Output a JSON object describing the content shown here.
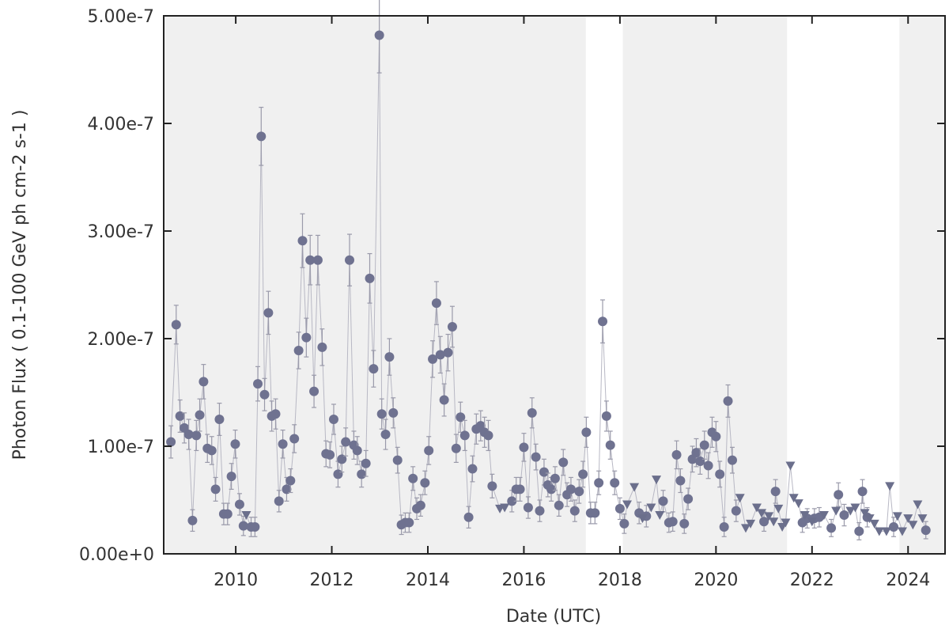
{
  "chart_data": {
    "type": "scatter",
    "xlabel": "Date (UTC)",
    "ylabel": "Photon Flux ( 0.1-100 GeV ph cm-2 s-1 )",
    "xlim": [
      2008.5,
      2024.77
    ],
    "ylim": [
      0,
      5e-07
    ],
    "xticks": [
      2010,
      2012,
      2014,
      2016,
      2018,
      2020,
      2022,
      2024
    ],
    "yticks": [
      {
        "value": 0,
        "label": "0.00e+0"
      },
      {
        "value": 1e-07,
        "label": "1.00e-7"
      },
      {
        "value": 2e-07,
        "label": "2.00e-7"
      },
      {
        "value": 3e-07,
        "label": "3.00e-7"
      },
      {
        "value": 4e-07,
        "label": "4.00e-7"
      },
      {
        "value": 5e-07,
        "label": "5.00e-7"
      }
    ],
    "shaded_regions": [
      [
        2008.5,
        2017.29
      ],
      [
        2018.06,
        2021.48
      ],
      [
        2023.82,
        2024.77
      ]
    ],
    "shade_color": "#f0f0f0",
    "line_color": "#b8b8c4",
    "series": [
      {
        "marker": "circle",
        "color": "#6f7290",
        "error_color": "#9a9aaa",
        "x": [
          2008.65,
          2008.76,
          2008.84,
          2008.93,
          2009.02,
          2009.1,
          2009.18,
          2009.25,
          2009.33,
          2009.41,
          2009.5,
          2009.58,
          2009.66,
          2009.75,
          2009.83,
          2009.91,
          2009.99,
          2010.08,
          2010.16,
          2010.32,
          2010.4,
          2010.46,
          2010.53,
          2010.6,
          2010.68,
          2010.75,
          2010.83,
          2010.9,
          2010.98,
          2011.06,
          2011.14,
          2011.22,
          2011.31,
          2011.39,
          2011.47,
          2011.55,
          2011.63,
          2011.71,
          2011.8,
          2011.88,
          2011.96,
          2012.04,
          2012.13,
          2012.21,
          2012.29,
          2012.37,
          2012.46,
          2012.53,
          2012.62,
          2012.71,
          2012.79,
          2012.87,
          2012.99,
          2013.04,
          2013.12,
          2013.2,
          2013.28,
          2013.37,
          2013.45,
          2013.53,
          2013.61,
          2013.69,
          2013.77,
          2013.85,
          2013.94,
          2014.02,
          2014.1,
          2014.18,
          2014.26,
          2014.34,
          2014.42,
          2014.51,
          2014.59,
          2014.68,
          2014.77,
          2014.85,
          2014.93,
          2015.01,
          2015.1,
          2015.18,
          2015.26,
          2015.34,
          2015.75,
          2015.84,
          2015.92,
          2016.0,
          2016.09,
          2016.17,
          2016.25,
          2016.33,
          2016.42,
          2016.5,
          2016.57,
          2016.65,
          2016.73,
          2016.82,
          2016.9,
          2016.98,
          2017.06,
          2017.15,
          2017.23,
          2017.3,
          2017.39,
          2017.48,
          2017.56,
          2017.64,
          2017.72,
          2017.8,
          2017.89,
          2018.0,
          2018.09,
          2018.4,
          2018.55,
          2018.9,
          2019.02,
          2019.1,
          2019.18,
          2019.26,
          2019.34,
          2019.42,
          2019.51,
          2019.59,
          2019.67,
          2019.76,
          2019.84,
          2019.92,
          2020.0,
          2020.08,
          2020.17,
          2020.25,
          2020.34,
          2020.42,
          2021.0,
          2021.24,
          2021.8,
          2021.9,
          2022.05,
          2022.15,
          2022.4,
          2022.55,
          2022.67,
          2022.98,
          2023.05,
          2023.15,
          2023.7,
          2024.37
        ],
        "values": [
          1.04e-07,
          2.13e-07,
          1.28e-07,
          1.17e-07,
          1.11e-07,
          3.1e-08,
          1.1e-07,
          1.29e-07,
          1.6e-07,
          9.8e-08,
          9.6e-08,
          6e-08,
          1.25e-07,
          3.7e-08,
          3.7e-08,
          7.2e-08,
          1.02e-07,
          4.6e-08,
          2.6e-08,
          2.5e-08,
          2.5e-08,
          1.58e-07,
          3.88e-07,
          1.48e-07,
          2.24e-07,
          1.28e-07,
          1.3e-07,
          4.9e-08,
          1.02e-07,
          6e-08,
          6.8e-08,
          1.07e-07,
          1.89e-07,
          2.91e-07,
          2.01e-07,
          2.73e-07,
          1.51e-07,
          2.73e-07,
          1.92e-07,
          9.3e-08,
          9.2e-08,
          1.25e-07,
          7.4e-08,
          8.8e-08,
          1.04e-07,
          2.73e-07,
          1.01e-07,
          9.6e-08,
          7.4e-08,
          8.4e-08,
          2.56e-07,
          1.72e-07,
          4.82e-07,
          1.3e-07,
          1.11e-07,
          1.83e-07,
          1.31e-07,
          8.7e-08,
          2.7e-08,
          2.9e-08,
          2.9e-08,
          7e-08,
          4.2e-08,
          4.5e-08,
          6.6e-08,
          9.6e-08,
          1.81e-07,
          2.33e-07,
          1.85e-07,
          1.43e-07,
          1.87e-07,
          2.11e-07,
          9.8e-08,
          1.27e-07,
          1.1e-07,
          3.4e-08,
          7.9e-08,
          1.16e-07,
          1.19e-07,
          1.13e-07,
          1.1e-07,
          6.3e-08,
          4.9e-08,
          6e-08,
          6e-08,
          9.9e-08,
          4.3e-08,
          1.31e-07,
          9e-08,
          4e-08,
          7.6e-08,
          6.4e-08,
          6e-08,
          7e-08,
          4.5e-08,
          8.5e-08,
          5.5e-08,
          6e-08,
          4e-08,
          5.8e-08,
          7.4e-08,
          1.13e-07,
          3.8e-08,
          3.8e-08,
          6.6e-08,
          2.16e-07,
          1.28e-07,
          1.01e-07,
          6.6e-08,
          4.2e-08,
          2.8e-08,
          3.8e-08,
          3.5e-08,
          4.9e-08,
          2.9e-08,
          3e-08,
          9.2e-08,
          6.8e-08,
          2.8e-08,
          5.1e-08,
          8.8e-08,
          9.4e-08,
          8.6e-08,
          1.01e-07,
          8.2e-08,
          1.13e-07,
          1.09e-07,
          7.4e-08,
          2.5e-08,
          1.42e-07,
          8.7e-08,
          4e-08,
          3e-08,
          5.8e-08,
          2.9e-08,
          3.3e-08,
          3.3e-08,
          3.4e-08,
          2.4e-08,
          5.5e-08,
          3.6e-08,
          2.1e-08,
          5.8e-08,
          3.4e-08,
          2.5e-08,
          2.2e-08
        ],
        "errors": [
          1.5e-08,
          1.8e-08,
          1.5e-08,
          1.4e-08,
          1.4e-08,
          1e-08,
          1.4e-08,
          1.5e-08,
          1.6e-08,
          1.3e-08,
          1.3e-08,
          1.1e-08,
          1.5e-08,
          1e-08,
          1e-08,
          1.2e-08,
          1.3e-08,
          1e-08,
          9e-09,
          9e-09,
          9e-09,
          1.6e-08,
          2.7e-08,
          1.5e-08,
          2e-08,
          1.4e-08,
          1.4e-08,
          1e-08,
          1.3e-08,
          1.1e-08,
          1.1e-08,
          1.3e-08,
          1.7e-08,
          2.5e-08,
          1.8e-08,
          2.3e-08,
          1.5e-08,
          2.3e-08,
          1.7e-08,
          1.2e-08,
          1.2e-08,
          1.4e-08,
          1.2e-08,
          1.2e-08,
          1.3e-08,
          2.4e-08,
          1.3e-08,
          1.3e-08,
          1.2e-08,
          1.2e-08,
          2.3e-08,
          1.7e-08,
          3.5e-08,
          1.4e-08,
          1.4e-08,
          1.7e-08,
          1.4e-08,
          1.2e-08,
          9e-09,
          9e-09,
          9e-09,
          1.1e-08,
          1e-08,
          1e-08,
          1.1e-08,
          1.3e-08,
          1.7e-08,
          2e-08,
          1.7e-08,
          1.5e-08,
          1.7e-08,
          1.9e-08,
          1.3e-08,
          1.4e-08,
          1.4e-08,
          1e-08,
          1.2e-08,
          1.4e-08,
          1.4e-08,
          1.4e-08,
          1.4e-08,
          1.1e-08,
          1e-08,
          1.1e-08,
          1.1e-08,
          1.3e-08,
          1e-08,
          1.4e-08,
          1.2e-08,
          1e-08,
          1.2e-08,
          1.1e-08,
          1.1e-08,
          1.1e-08,
          1e-08,
          1.2e-08,
          1.1e-08,
          1.1e-08,
          1e-08,
          1.1e-08,
          1.2e-08,
          1.4e-08,
          1e-08,
          1e-08,
          1.1e-08,
          2e-08,
          1.4e-08,
          1.3e-08,
          1.1e-08,
          1e-08,
          9e-09,
          1e-08,
          1e-08,
          1e-08,
          9e-09,
          9e-09,
          1.3e-08,
          1.1e-08,
          9e-09,
          1e-08,
          1.2e-08,
          1.3e-08,
          1.2e-08,
          1.3e-08,
          1.2e-08,
          1.4e-08,
          1.4e-08,
          1.2e-08,
          9e-09,
          1.5e-08,
          1.2e-08,
          1e-08,
          9e-09,
          1.1e-08,
          9e-09,
          9e-09,
          9e-09,
          9e-09,
          8e-09,
          1.1e-08,
          1e-08,
          8e-09,
          1.1e-08,
          9e-09,
          9e-09,
          8e-09
        ]
      },
      {
        "marker": "triangle-down",
        "color": "#6b6f8c",
        "x": [
          2010.22,
          2015.5,
          2015.6,
          2018.15,
          2018.3,
          2018.47,
          2018.65,
          2018.76,
          2018.83,
          2020.5,
          2020.62,
          2020.72,
          2020.85,
          2020.95,
          2021.1,
          2021.2,
          2021.3,
          2021.38,
          2021.45,
          2021.55,
          2021.62,
          2021.72,
          2021.85,
          2022.0,
          2022.25,
          2022.5,
          2022.8,
          2022.9,
          2023.1,
          2023.2,
          2023.3,
          2023.4,
          2023.55,
          2023.62,
          2023.78,
          2023.88,
          2024.0,
          2024.1,
          2024.2,
          2024.3
        ],
        "values": [
          3.6e-08,
          4.2e-08,
          4.3e-08,
          4.6e-08,
          6.2e-08,
          3.3e-08,
          4.3e-08,
          6.9e-08,
          3.6e-08,
          5.2e-08,
          2.4e-08,
          2.8e-08,
          4.3e-08,
          3.8e-08,
          3.5e-08,
          3e-08,
          4.2e-08,
          2.5e-08,
          2.9e-08,
          8.2e-08,
          5.2e-08,
          4.7e-08,
          3.6e-08,
          3e-08,
          3.6e-08,
          4e-08,
          4e-08,
          4.3e-08,
          3.8e-08,
          3.3e-08,
          2.8e-08,
          2.1e-08,
          2.1e-08,
          6.3e-08,
          3.5e-08,
          2.1e-08,
          3.3e-08,
          2.7e-08,
          4.6e-08,
          3.3e-08
        ]
      }
    ]
  }
}
